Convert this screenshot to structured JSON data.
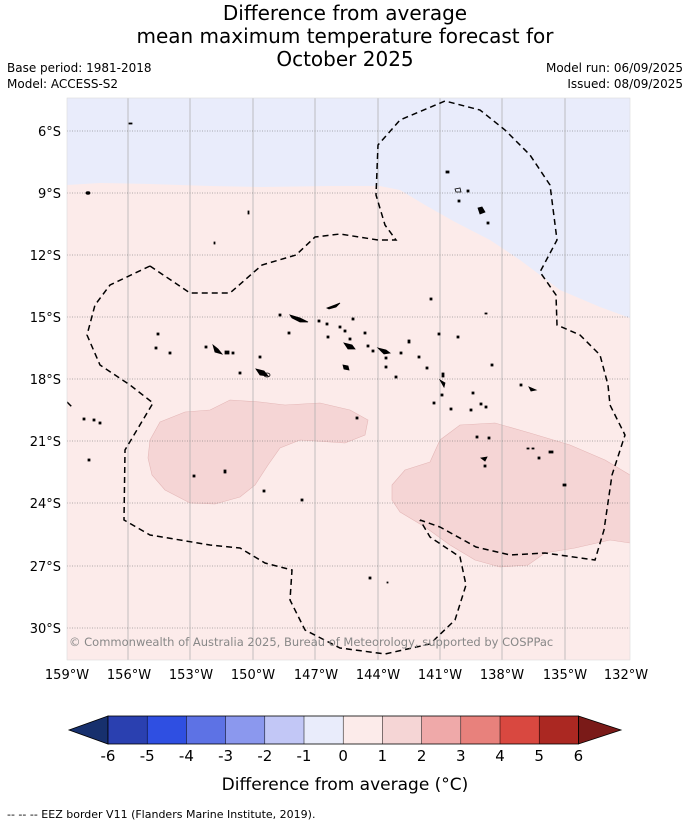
{
  "title": {
    "line1": "Difference from average",
    "line2": "mean maximum temperature forecast for",
    "line3": "October 2025"
  },
  "meta": {
    "base_period": "Base period: 1981-2018",
    "model": "Model: ACCESS-S2",
    "model_run": "Model run: 06/09/2025",
    "issued": "Issued: 08/09/2025"
  },
  "map": {
    "lat_labels": [
      "6°S",
      "9°S",
      "12°S",
      "15°S",
      "18°S",
      "21°S",
      "24°S",
      "27°S",
      "30°S"
    ],
    "lon_labels": [
      "159°W",
      "156°W",
      "153°W",
      "150°W",
      "147°W",
      "144°W",
      "141°W",
      "138°W",
      "135°W",
      "132°W"
    ],
    "copyright": "© Commonwealth of Australia 2025, Bureau of Meteorology, supported by COSPPac",
    "colors": {
      "minus1_to_0": "#e9ecfb",
      "zero_to_1": "#fcebea",
      "one_to_2": "#f5d5d5",
      "grid": "#aaaaaa"
    }
  },
  "colorbar": {
    "ticks": [
      "-6",
      "-5",
      "-4",
      "-3",
      "-2",
      "-1",
      "0",
      "1",
      "2",
      "3",
      "4",
      "5",
      "6"
    ],
    "label": "Difference from average (°C)",
    "colors": [
      "#17306d",
      "#2a40b0",
      "#2f4fe2",
      "#5d72e5",
      "#8b98ee",
      "#c2c7f6",
      "#e9ecfb",
      "#fcebea",
      "#f5d5d5",
      "#efa9a9",
      "#e8817c",
      "#d94840",
      "#ab2822",
      "#7a1a18"
    ]
  },
  "footnote": "-- -- -- EEZ border V11 (Flanders Marine Institute, 2019)."
}
